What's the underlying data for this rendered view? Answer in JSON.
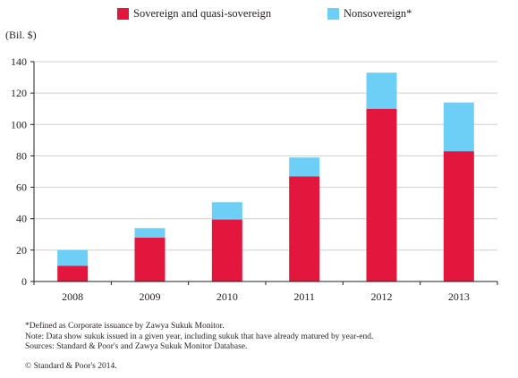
{
  "chart_data": {
    "type": "bar",
    "stacked": true,
    "ylabel": "(Bil. $)",
    "ylim": [
      0,
      140
    ],
    "yticks": [
      0,
      20,
      40,
      60,
      80,
      100,
      120,
      140
    ],
    "categories": [
      "2008",
      "2009",
      "2010",
      "2011",
      "2012",
      "2013"
    ],
    "series": [
      {
        "name": "Sovereign and quasi-sovereign",
        "values": [
          10,
          28,
          39.5,
          67,
          110,
          83
        ]
      },
      {
        "name": "Nonsovereign*",
        "values": [
          10,
          6,
          11,
          12,
          23,
          31
        ]
      }
    ],
    "colors": {
      "sovereign": "#e3173e",
      "nonsovereign": "#6dcff6",
      "grid": "#cfcfcf",
      "axis": "#231f20"
    },
    "grid": true,
    "legend_position": "top"
  },
  "legend": {
    "sovereign": "Sovereign and quasi-sovereign",
    "nonsovereign": "Nonsovereign*"
  },
  "notes": [
    "*Defined as Corporate issuance by Zawya Sukuk Monitor.",
    "Note: Data show sukuk  issued in a given year, including sukuk that have already matured by year-end.",
    "Sources: Standard & Poor's and Zawya Sukuk Monitor Database."
  ],
  "copyright": "© Standard & Poor's 2014."
}
